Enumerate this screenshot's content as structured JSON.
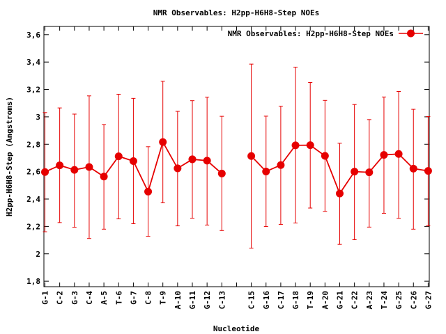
{
  "chart_data": {
    "type": "line",
    "title": "NMR Observables: H2pp-H6H8-Step NOEs",
    "xlabel": "Nucleotide",
    "ylabel": "H2pp-H6H8-Step (Angstroms)",
    "ylim": [
      1.76,
      3.66
    ],
    "yticks": [
      "1,8",
      "2",
      "2,2",
      "2,4",
      "2,6",
      "2,8",
      "3",
      "3,2",
      "3,4",
      "3,6"
    ],
    "categories": [
      "G-1",
      "C-2",
      "G-3",
      "C-4",
      "A-5",
      "T-6",
      "G-7",
      "C-8",
      "T-9",
      "A-10",
      "G-11",
      "G-12",
      "C-13",
      "",
      "C-15",
      "G-16",
      "C-17",
      "G-18",
      "T-19",
      "A-20",
      "G-21",
      "C-22",
      "A-23",
      "T-24",
      "G-25",
      "C-26",
      "G-27"
    ],
    "legend_position": "top-right",
    "series": [
      {
        "name": "NMR Observables: H2pp-H6H8-Step NOEs",
        "color": "#e60000",
        "values": [
          2.597,
          2.646,
          2.613,
          2.634,
          2.564,
          2.712,
          2.677,
          2.454,
          2.816,
          2.624,
          2.69,
          2.68,
          2.586,
          null,
          2.714,
          2.601,
          2.648,
          2.792,
          2.793,
          2.715,
          2.44,
          2.6,
          2.595,
          2.722,
          2.729,
          2.622,
          2.605
        ],
        "err_low": [
          2.161,
          2.228,
          2.194,
          2.112,
          2.18,
          2.255,
          2.22,
          2.128,
          2.372,
          2.204,
          2.26,
          2.21,
          2.17,
          null,
          2.041,
          2.199,
          2.215,
          2.225,
          2.334,
          2.31,
          2.069,
          2.103,
          2.195,
          2.296,
          2.259,
          2.18,
          2.204
        ],
        "err_high": [
          3.031,
          3.065,
          3.02,
          3.153,
          2.944,
          3.165,
          3.135,
          2.782,
          3.26,
          3.04,
          3.118,
          3.144,
          3.004,
          null,
          3.385,
          3.005,
          3.078,
          3.363,
          3.251,
          3.12,
          2.807,
          3.09,
          2.98,
          3.145,
          3.185,
          3.055,
          3.002
        ]
      }
    ]
  }
}
